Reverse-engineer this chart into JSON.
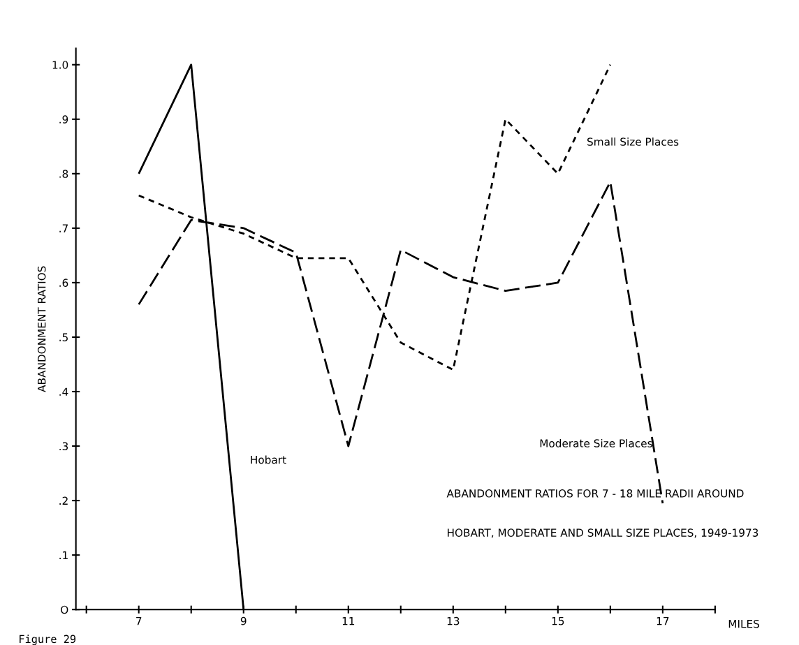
{
  "chart_data": {
    "type": "line",
    "series": [
      {
        "name": "Hobart",
        "color": "#000000",
        "line_style": "solid",
        "x": [
          7,
          8,
          9
        ],
        "values": [
          0.8,
          1.0,
          0.0
        ]
      },
      {
        "name": "Small Size Places",
        "color": "#000000",
        "line_style": "dotted",
        "x": [
          7,
          8,
          9,
          10,
          11,
          12,
          13,
          14,
          15,
          16
        ],
        "values": [
          0.76,
          0.72,
          0.69,
          0.645,
          0.645,
          0.49,
          0.44,
          0.9,
          0.8,
          1.0
        ]
      },
      {
        "name": "Moderate Size Places",
        "color": "#000000",
        "line_style": "dashed",
        "x": [
          7,
          8,
          9,
          10,
          11,
          12,
          13,
          14,
          15,
          16,
          17
        ],
        "values": [
          0.56,
          0.715,
          0.7,
          0.655,
          0.3,
          0.66,
          0.61,
          0.585,
          0.6,
          0.785,
          0.195
        ]
      }
    ],
    "xlabel": "MILES",
    "ylabel": "ABANDONMENT RATIOS",
    "xlim": [
      5.8,
      18
    ],
    "ylim": [
      0,
      1.03
    ],
    "xticks": [
      {
        "value": 6,
        "label": null
      },
      7,
      {
        "value": 8,
        "label": null
      },
      9,
      {
        "value": 10,
        "label": null
      },
      11,
      {
        "value": 12,
        "label": null
      },
      13,
      {
        "value": 14,
        "label": null
      },
      15,
      {
        "value": 16,
        "label": null
      },
      17,
      {
        "value": 18,
        "label": null
      }
    ],
    "yticks": [
      {
        "value": 0,
        "label": "O"
      },
      {
        "value": 0.1,
        "label": ".1"
      },
      {
        "value": 0.2,
        "label": ".2"
      },
      {
        "value": 0.3,
        "label": ".3"
      },
      {
        "value": 0.4,
        "label": ".4"
      },
      {
        "value": 0.5,
        "label": ".5"
      },
      {
        "value": 0.6,
        "label": ".6"
      },
      {
        "value": 0.7,
        "label": ".7"
      },
      {
        "value": 0.8,
        "label": ".8"
      },
      {
        "value": 0.9,
        "label": ".9"
      },
      {
        "value": 1.0,
        "label": "1.0"
      }
    ],
    "grid": false,
    "legend": false,
    "marker": "none",
    "annotations": [
      "ABANDONMENT RATIOS FOR 7 - 18 MILE RADII AROUND",
      "HOBART, MODERATE AND SMALL SIZE PLACES, 1949-1973",
      "Figure 29"
    ]
  }
}
